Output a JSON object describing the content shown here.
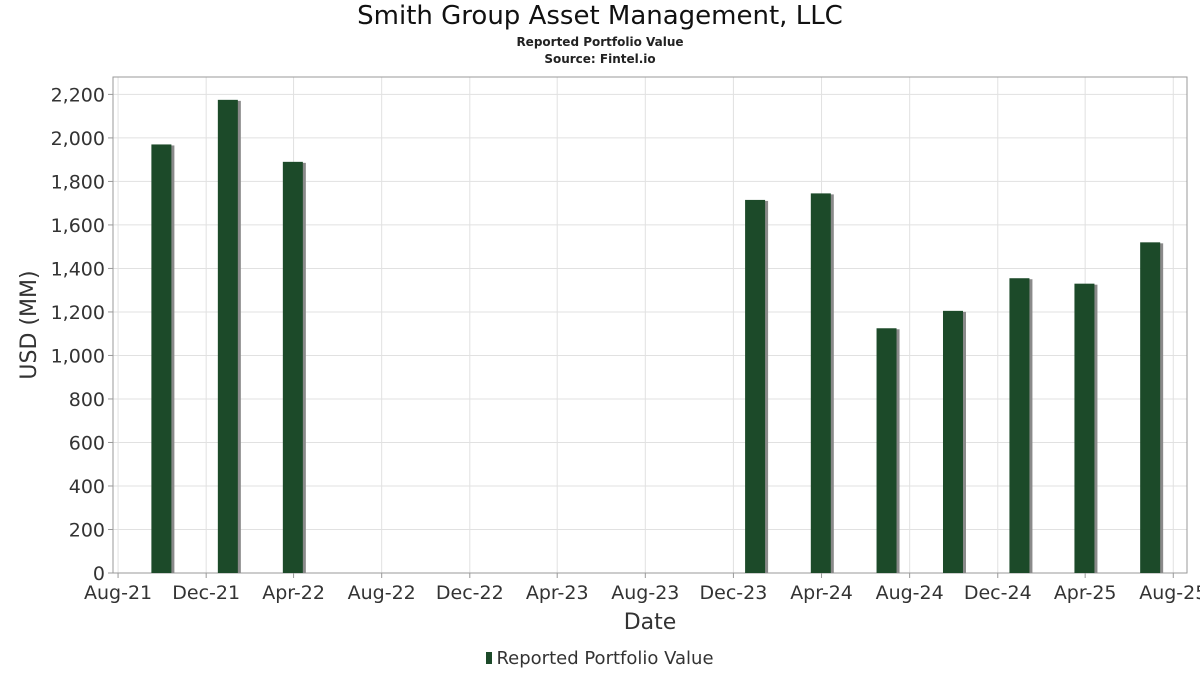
{
  "chart_data": {
    "type": "bar",
    "title": "Smith Group Asset Management, LLC",
    "subtitle": "Reported Portfolio Value",
    "source": "Source: Fintel.io",
    "xlabel": "Date",
    "ylabel": "USD (MM)",
    "x_ticks": [
      "Aug-21",
      "Dec-21",
      "Apr-22",
      "Aug-22",
      "Dec-22",
      "Apr-23",
      "Aug-23",
      "Dec-23",
      "Apr-24",
      "Aug-24",
      "Dec-24",
      "Apr-25",
      "Aug-25"
    ],
    "y_ticks": [
      "0",
      "200",
      "400",
      "600",
      "800",
      "1,000",
      "1,200",
      "1,400",
      "1,600",
      "1,800",
      "2,000",
      "2,200"
    ],
    "ylim": [
      0,
      2280
    ],
    "xlim": [
      "2021-07-25",
      "2025-08-20"
    ],
    "grid": true,
    "legend": "bottom-center",
    "series": [
      {
        "name": "Reported Portfolio Value",
        "color": "#1c4a29",
        "x": [
          "2021-09-30",
          "2021-12-31",
          "2022-03-31",
          "2023-12-31",
          "2024-03-31",
          "2024-06-30",
          "2024-09-30",
          "2024-12-31",
          "2025-03-31",
          "2025-06-30"
        ],
        "values": [
          1970,
          2175,
          1890,
          1715,
          1745,
          1125,
          1205,
          1355,
          1330,
          1520
        ]
      }
    ]
  }
}
